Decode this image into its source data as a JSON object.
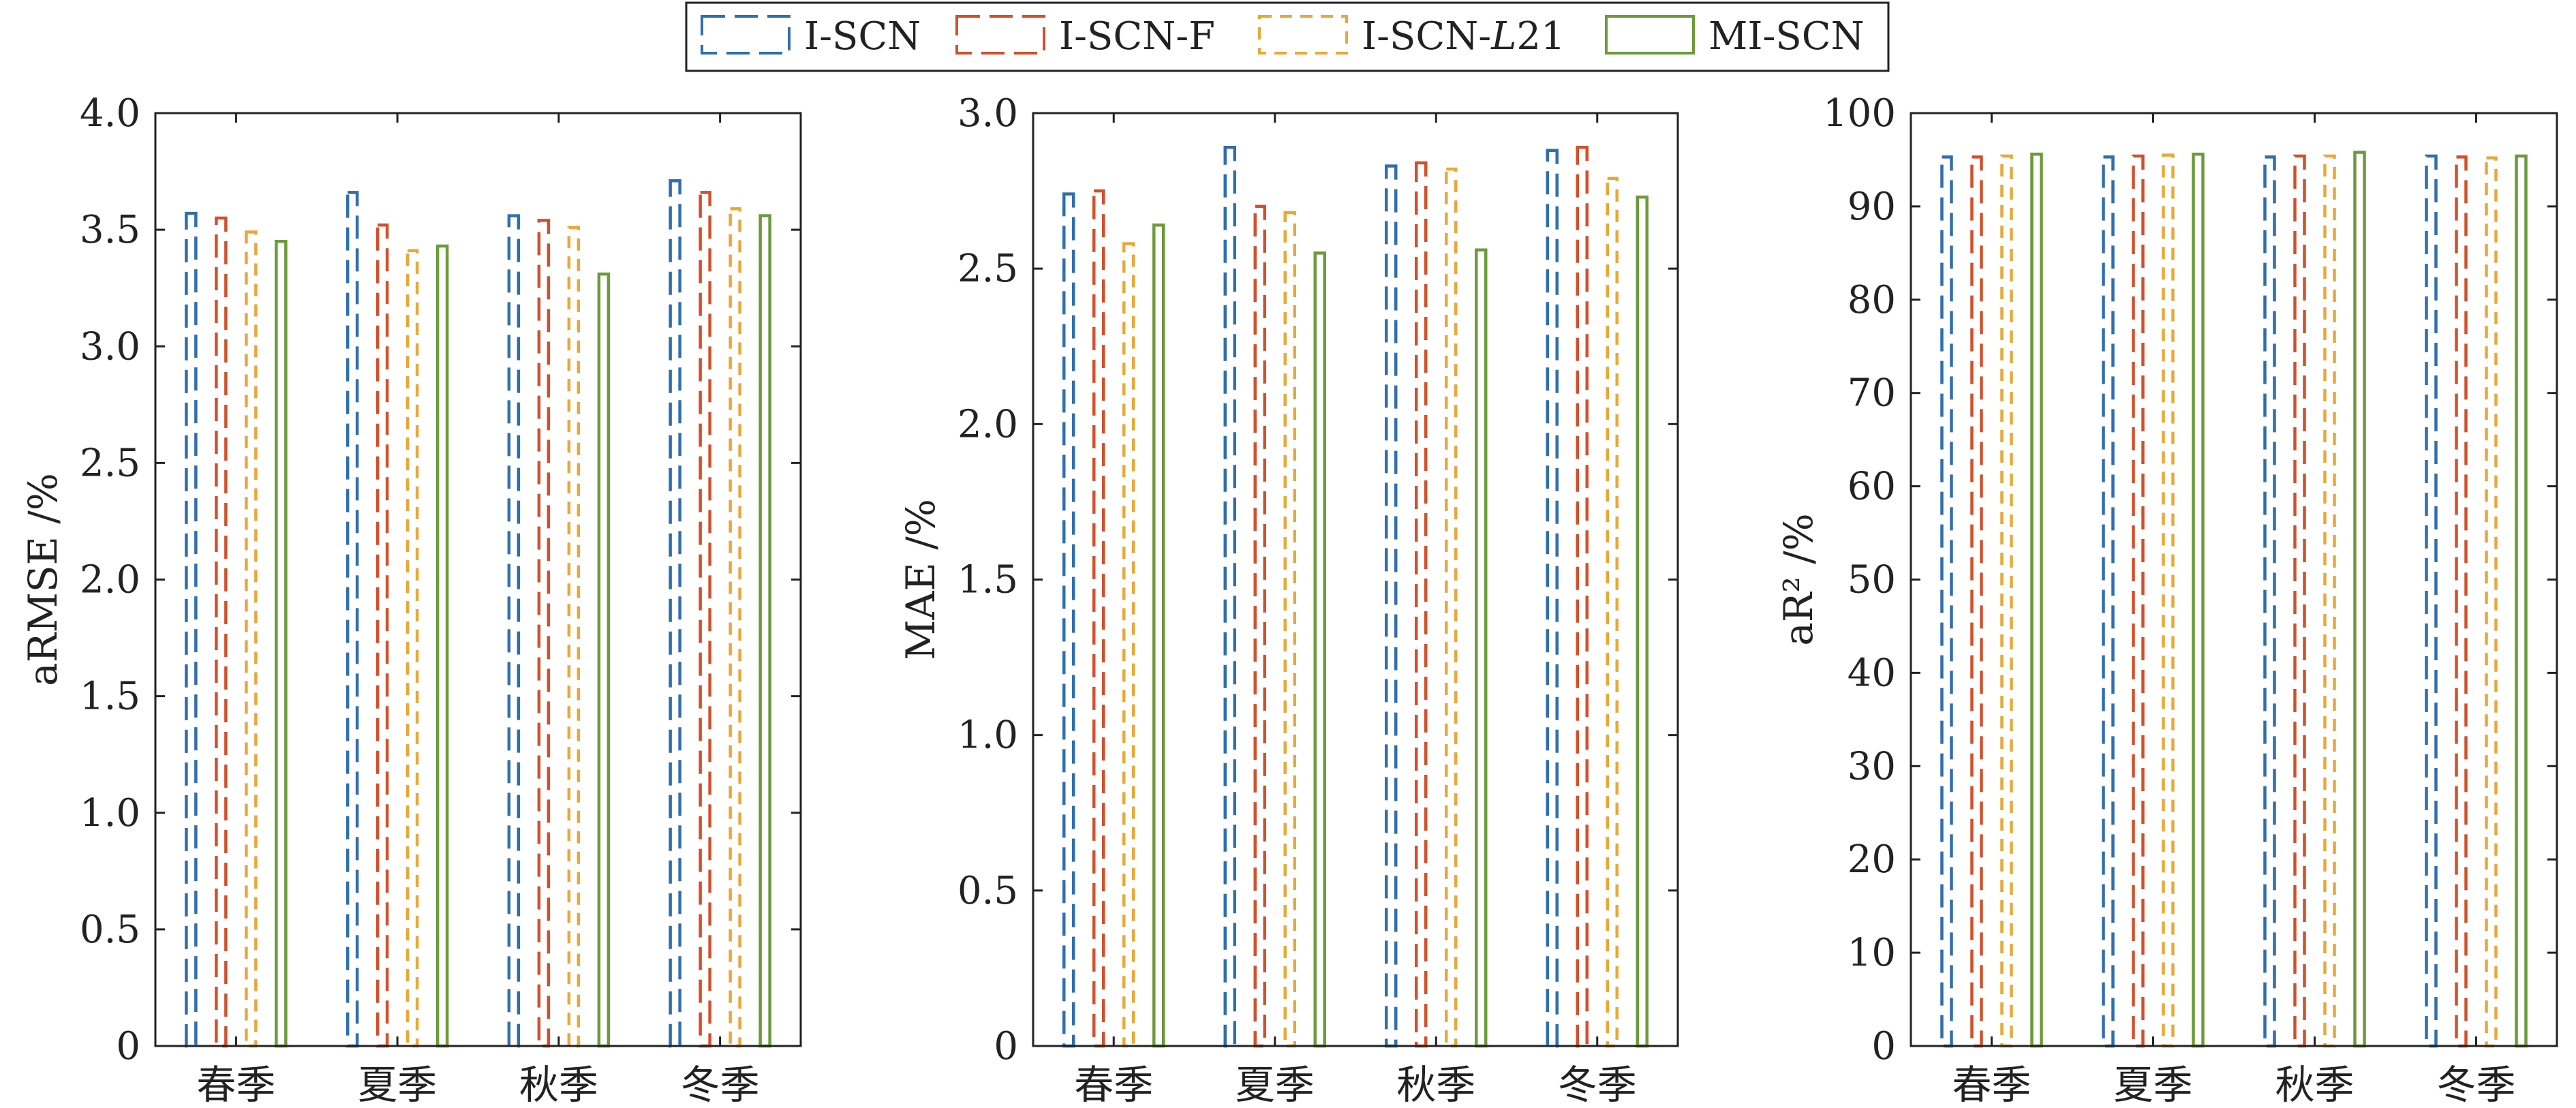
{
  "legend": {
    "entries": [
      {
        "label": "I-SCN",
        "color": "#2f6fad",
        "dash": "dashed"
      },
      {
        "label": "I-SCN-F",
        "color": "#d2502a",
        "dash": "dashed"
      },
      {
        "label": "I-SCN-L21",
        "label_prefix": "I-SCN-",
        "label_italic": "L",
        "label_suffix": "21",
        "color": "#e8a838",
        "dash": "dotted-dash"
      },
      {
        "label": "MI-SCN",
        "color": "#6b9b3a",
        "dash": "solid"
      }
    ]
  },
  "chart_data": [
    {
      "type": "bar",
      "categories": [
        "春季",
        "夏季",
        "秋季",
        "冬季"
      ],
      "ylabel": "aRMSE /%",
      "ylim": [
        0,
        4.0
      ],
      "yticks": [
        0,
        0.5,
        1.0,
        1.5,
        2.0,
        2.5,
        3.0,
        3.5,
        4.0
      ],
      "ytick_labels": [
        "0",
        "0.5",
        "1.0",
        "1.5",
        "2.0",
        "2.5",
        "3.0",
        "3.5",
        "4.0"
      ],
      "series": [
        {
          "name": "I-SCN",
          "values": [
            3.57,
            3.66,
            3.56,
            3.71
          ]
        },
        {
          "name": "I-SCN-F",
          "values": [
            3.55,
            3.52,
            3.54,
            3.66
          ]
        },
        {
          "name": "I-SCN-L21",
          "values": [
            3.49,
            3.41,
            3.51,
            3.59
          ]
        },
        {
          "name": "MI-SCN",
          "values": [
            3.45,
            3.43,
            3.31,
            3.56
          ]
        }
      ]
    },
    {
      "type": "bar",
      "categories": [
        "春季",
        "夏季",
        "秋季",
        "冬季"
      ],
      "ylabel": "MAE /%",
      "ylim": [
        0,
        3.0
      ],
      "yticks": [
        0,
        0.5,
        1.0,
        1.5,
        2.0,
        2.5,
        3.0
      ],
      "ytick_labels": [
        "0",
        "0.5",
        "1.0",
        "1.5",
        "2.0",
        "2.5",
        "3.0"
      ],
      "series": [
        {
          "name": "I-SCN",
          "values": [
            2.74,
            2.89,
            2.83,
            2.88
          ]
        },
        {
          "name": "I-SCN-F",
          "values": [
            2.75,
            2.7,
            2.84,
            2.89
          ]
        },
        {
          "name": "I-SCN-L21",
          "values": [
            2.58,
            2.68,
            2.82,
            2.79
          ]
        },
        {
          "name": "MI-SCN",
          "values": [
            2.64,
            2.55,
            2.56,
            2.73
          ]
        }
      ]
    },
    {
      "type": "bar",
      "categories": [
        "春季",
        "夏季",
        "秋季",
        "冬季"
      ],
      "ylabel": "aR² /%",
      "ylim": [
        0,
        100
      ],
      "yticks": [
        0,
        10,
        20,
        30,
        40,
        50,
        60,
        70,
        80,
        90,
        100
      ],
      "ytick_labels": [
        "0",
        "10",
        "20",
        "30",
        "40",
        "50",
        "60",
        "70",
        "80",
        "90",
        "100"
      ],
      "series": [
        {
          "name": "I-SCN",
          "values": [
            95.3,
            95.3,
            95.3,
            95.4
          ]
        },
        {
          "name": "I-SCN-F",
          "values": [
            95.3,
            95.4,
            95.4,
            95.3
          ]
        },
        {
          "name": "I-SCN-L21",
          "values": [
            95.4,
            95.5,
            95.4,
            95.2
          ]
        },
        {
          "name": "MI-SCN",
          "values": [
            95.6,
            95.6,
            95.8,
            95.4
          ]
        }
      ]
    }
  ]
}
